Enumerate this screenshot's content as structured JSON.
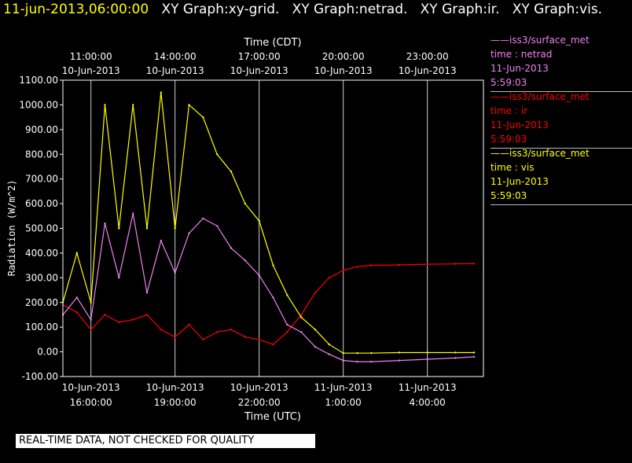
{
  "header": {
    "timestamp": "11-jun-2013,06:00:00",
    "graph_titles": [
      "XY Graph:xy-grid.",
      "XY Graph:netrad.",
      "XY Graph:ir.",
      "XY Graph:vis."
    ]
  },
  "legend": [
    {
      "source": "iss3/surface_met",
      "label": "time : netrad",
      "date": "11-Jun-2013",
      "time": "5:59:03",
      "color": "#ee82ee"
    },
    {
      "source": "iss3/surface_met",
      "label": "time : ir",
      "date": "11-Jun-2013",
      "time": "5:59:03",
      "color": "#ff0000"
    },
    {
      "source": "iss3/surface_met",
      "label": "time : vis",
      "date": "11-Jun-2013",
      "time": "5:59:03",
      "color": "#ffff00"
    }
  ],
  "notice": "REAL-TIME DATA, NOT CHECKED FOR QUALITY",
  "chart_data": {
    "type": "line",
    "title": "",
    "xlabel": "Time (UTC)",
    "xlabel_top": "Time (CDT)",
    "ylabel": "Radiation (W/m^2)",
    "ylim": [
      -100,
      1100
    ],
    "xlim_utc": [
      "2013-06-10 15:00",
      "2013-06-11 06:00"
    ],
    "grid": true,
    "y_ticks": [
      "-100.00",
      "0.00",
      "100.00",
      "200.00",
      "300.00",
      "400.00",
      "500.00",
      "600.00",
      "700.00",
      "800.00",
      "900.00",
      "1000.00",
      "1100.00"
    ],
    "x_ticks_bottom": [
      {
        "date": "10-Jun-2013",
        "time": "16:00:00"
      },
      {
        "date": "10-Jun-2013",
        "time": "19:00:00"
      },
      {
        "date": "10-Jun-2013",
        "time": "22:00:00"
      },
      {
        "date": "11-Jun-2013",
        "time": "1:00:00"
      },
      {
        "date": "11-Jun-2013",
        "time": "4:00:00"
      }
    ],
    "x_ticks_top": [
      {
        "time": "11:00:00",
        "date": "10-Jun-2013"
      },
      {
        "time": "14:00:00",
        "date": "10-Jun-2013"
      },
      {
        "time": "17:00:00",
        "date": "10-Jun-2013"
      },
      {
        "time": "20:00:00",
        "date": "10-Jun-2013"
      },
      {
        "time": "23:00:00",
        "date": "10-Jun-2013"
      }
    ],
    "series": [
      {
        "name": "netrad",
        "color": "#ee82ee",
        "x": [
          "15:00",
          "15:30",
          "16:00",
          "16:30",
          "17:00",
          "17:30",
          "18:00",
          "18:30",
          "19:00",
          "19:30",
          "20:00",
          "20:30",
          "21:00",
          "21:30",
          "22:00",
          "22:30",
          "23:00",
          "23:30",
          "00:00",
          "00:30",
          "01:00",
          "01:30",
          "02:00",
          "03:00",
          "04:00",
          "05:00",
          "05:40"
        ],
        "values": [
          150,
          220,
          130,
          520,
          300,
          560,
          240,
          450,
          320,
          480,
          540,
          510,
          420,
          370,
          310,
          220,
          110,
          80,
          20,
          -10,
          -35,
          -40,
          -40,
          -35,
          -30,
          -25,
          -20
        ]
      },
      {
        "name": "ir",
        "color": "#ff0000",
        "x": [
          "15:00",
          "15:30",
          "16:00",
          "16:30",
          "17:00",
          "17:30",
          "18:00",
          "18:30",
          "19:00",
          "19:30",
          "20:00",
          "20:30",
          "21:00",
          "21:30",
          "22:00",
          "22:30",
          "23:00",
          "23:30",
          "00:00",
          "00:30",
          "01:00",
          "01:30",
          "02:00",
          "03:00",
          "04:00",
          "05:00",
          "05:40"
        ],
        "values": [
          190,
          160,
          90,
          150,
          120,
          130,
          150,
          90,
          60,
          110,
          50,
          80,
          90,
          60,
          50,
          30,
          80,
          150,
          240,
          300,
          330,
          345,
          350,
          352,
          355,
          356,
          357
        ]
      },
      {
        "name": "vis",
        "color": "#ffff00",
        "x": [
          "15:00",
          "15:30",
          "16:00",
          "16:30",
          "17:00",
          "17:30",
          "18:00",
          "18:30",
          "19:00",
          "19:30",
          "20:00",
          "20:30",
          "21:00",
          "21:30",
          "22:00",
          "22:30",
          "23:00",
          "23:30",
          "00:00",
          "00:30",
          "01:00",
          "01:30",
          "02:00",
          "03:00",
          "04:00",
          "05:00",
          "05:40"
        ],
        "values": [
          200,
          400,
          200,
          1000,
          500,
          1000,
          500,
          1050,
          500,
          1000,
          950,
          800,
          730,
          600,
          530,
          350,
          230,
          140,
          90,
          30,
          -5,
          -5,
          -5,
          -3,
          -3,
          -3,
          -3
        ]
      }
    ]
  }
}
